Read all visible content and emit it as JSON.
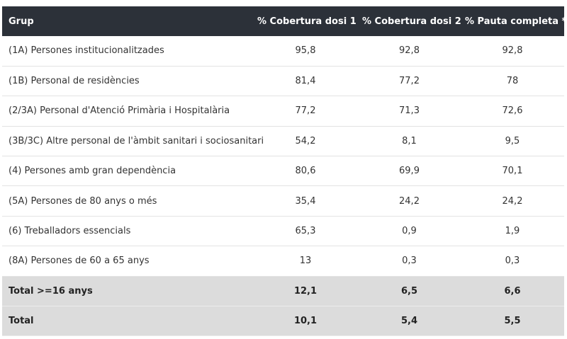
{
  "header": {
    "grup": "Grup",
    "dosi1": "% Cobertura dosi 1",
    "dosi2": "% Cobertura dosi 2",
    "pauta": "% Pauta completa *"
  },
  "rows": [
    {
      "grup": "(1A) Persones institucionalitzades",
      "dosi1": "95,8",
      "dosi2": "92,8",
      "pauta": "92,8"
    },
    {
      "grup": "(1B) Personal de residències",
      "dosi1": "81,4",
      "dosi2": "77,2",
      "pauta": "78"
    },
    {
      "grup": "(2/3A) Personal d'Atenció Primària i Hospitalària",
      "dosi1": "77,2",
      "dosi2": "71,3",
      "pauta": "72,6"
    },
    {
      "grup": "(3B/3C) Altre personal de l'àmbit sanitari i sociosanitari",
      "dosi1": "54,2",
      "dosi2": "8,1",
      "pauta": "9,5"
    },
    {
      "grup": "(4) Persones amb gran dependència",
      "dosi1": "80,6",
      "dosi2": "69,9",
      "pauta": "70,1"
    },
    {
      "grup": "(5A) Persones de 80 anys o més",
      "dosi1": "35,4",
      "dosi2": "24,2",
      "pauta": "24,2"
    },
    {
      "grup": "(6) Treballadors essencials",
      "dosi1": "65,3",
      "dosi2": "0,9",
      "pauta": "1,9"
    },
    {
      "grup": "(8A) Persones de 60 a 65 anys",
      "dosi1": "13",
      "dosi2": "0,3",
      "pauta": "0,3"
    }
  ],
  "totals": [
    {
      "grup": "Total >=16 anys",
      "dosi1": "12,1",
      "dosi2": "6,5",
      "pauta": "6,6"
    },
    {
      "grup": "Total",
      "dosi1": "10,1",
      "dosi2": "5,4",
      "pauta": "5,5"
    }
  ]
}
